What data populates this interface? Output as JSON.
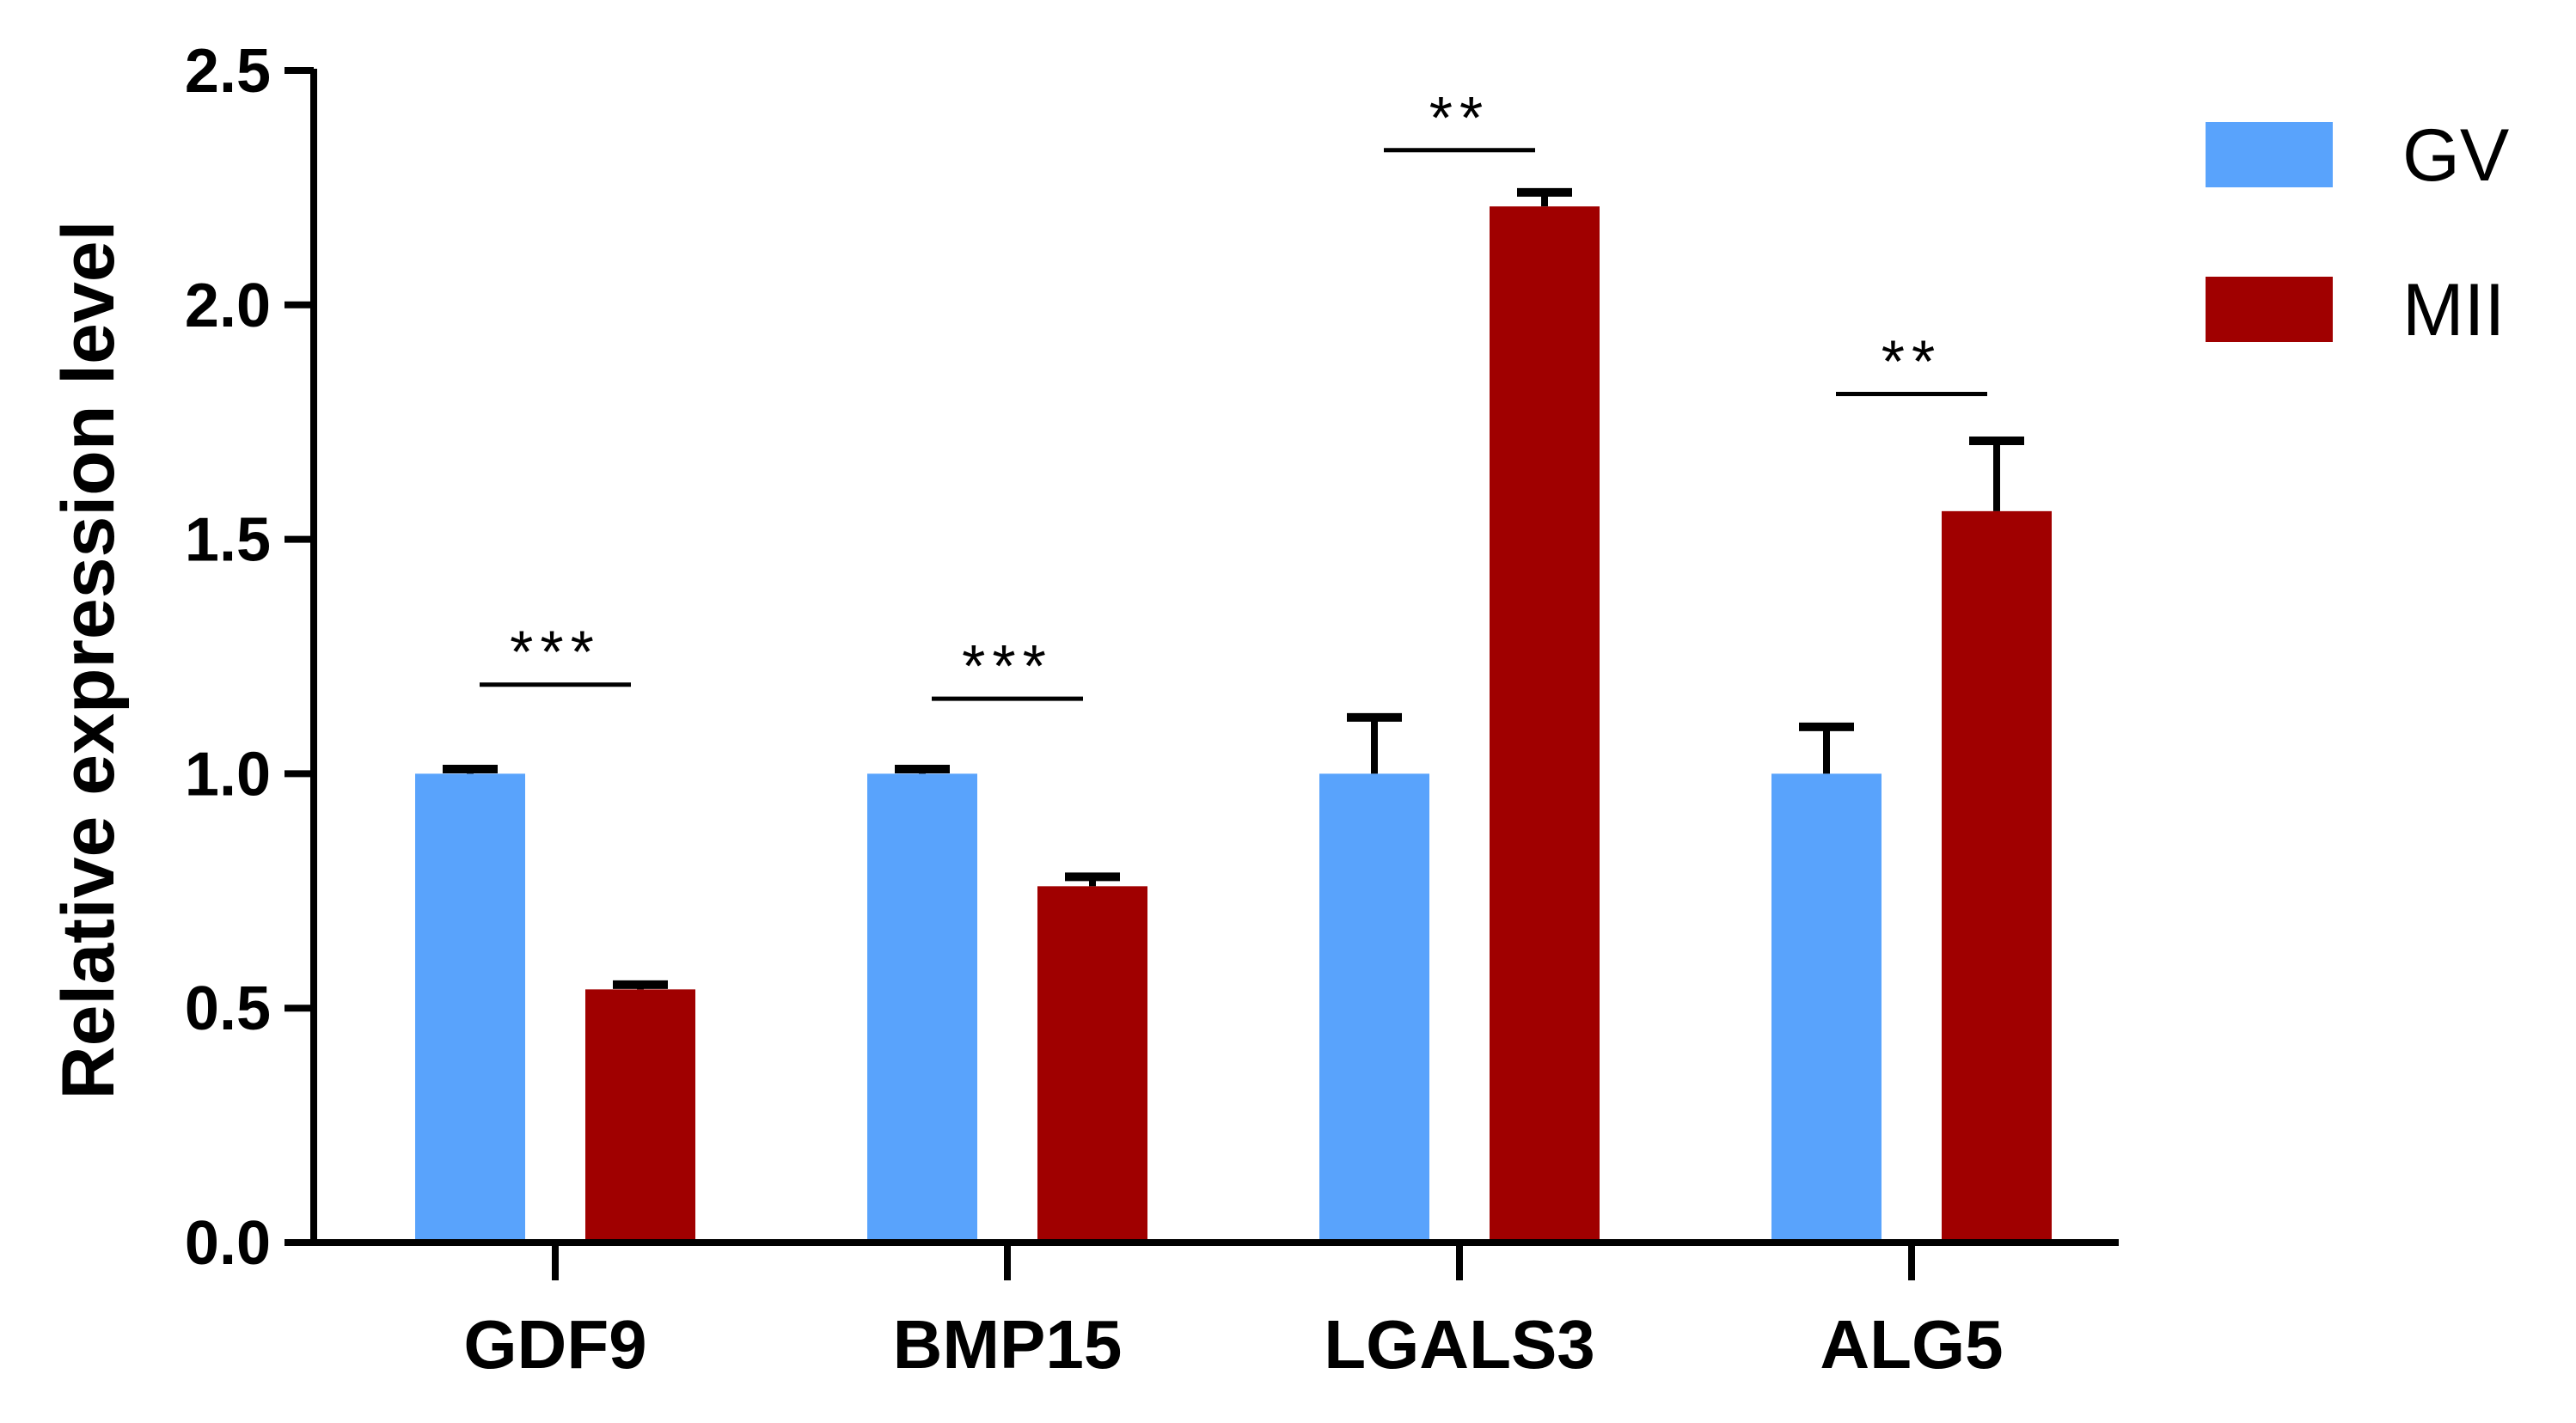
{
  "chart_data": {
    "type": "bar",
    "title": "",
    "xlabel": "",
    "ylabel": "Relative expression level",
    "ylim": [
      0,
      2.5
    ],
    "yticks": [
      "0.0",
      "0.5",
      "1.0",
      "1.5",
      "2.0",
      "2.5"
    ],
    "ytick_values": [
      0,
      0.5,
      1.0,
      1.5,
      2.0,
      2.5
    ],
    "categories": [
      "GDF9",
      "BMP15",
      "LGALS3",
      "ALG5"
    ],
    "series": [
      {
        "name": "GV",
        "color": "#59a3fc",
        "values": [
          1.0,
          1.0,
          1.0,
          1.0
        ],
        "errors": [
          0.01,
          0.01,
          0.12,
          0.1
        ]
      },
      {
        "name": "MII",
        "color": "#a00000",
        "values": [
          0.54,
          0.76,
          2.21,
          1.56
        ],
        "errors": [
          0.01,
          0.02,
          0.03,
          0.15
        ]
      }
    ],
    "significance": [
      {
        "category": "GDF9",
        "label": "***",
        "y": 1.19
      },
      {
        "category": "BMP15",
        "label": "***",
        "y": 1.16
      },
      {
        "category": "LGALS3",
        "label": "**",
        "y": 2.33
      },
      {
        "category": "ALG5",
        "label": "**",
        "y": 1.81
      }
    ],
    "legend": {
      "position": "top-right"
    },
    "grid": false
  }
}
